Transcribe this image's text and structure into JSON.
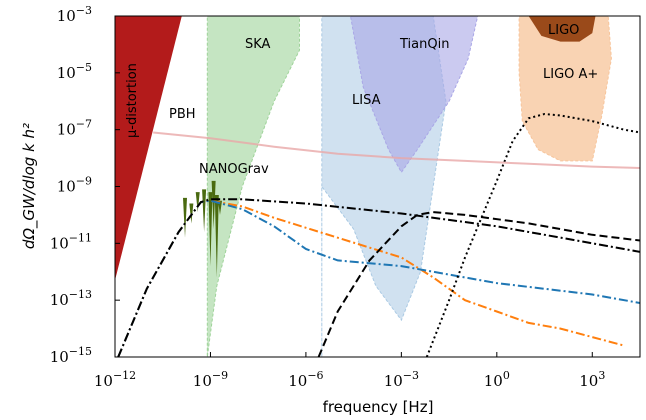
{
  "chart_data": {
    "type": "line",
    "title": "",
    "xlabel": "frequency [Hz]",
    "ylabel": "dΩ_GW/dlog k h²",
    "xscale": "log",
    "yscale": "log",
    "xlim_log10": [
      -12,
      4.5
    ],
    "ylim_log10": [
      -15,
      -3
    ],
    "x_ticks": [
      "10^{-12}",
      "10^{-9}",
      "10^{-6}",
      "10^{-3}",
      "10^{0}",
      "10^{3}"
    ],
    "y_ticks": [
      "10^{-15}",
      "10^{-13}",
      "10^{-11}",
      "10^{-9}",
      "10^{-7}",
      "10^{-5}",
      "10^{-3}"
    ],
    "region_labels": {
      "mu": "μ-distortion",
      "ska": "SKA",
      "tianqin": "TianQin",
      "lisa": "LISA",
      "ligo": "LIGO",
      "ligo_aplus": "LIGO A+",
      "pbh": "PBH",
      "nanograv": "NANOGrav"
    },
    "colors": {
      "mu": "#b31b1b",
      "ska": "#9fd39a",
      "lisa": "#a9c9e3",
      "tianqin": "#a9a6e6",
      "ligo_aplus": "#f7c49a",
      "ligo": "#9a4a1a",
      "nanograv": "#4a6a10",
      "pbh": "#e8a8a8",
      "orange": "#ff7f0e",
      "blue": "#1f77b4",
      "black": "#000000"
    },
    "series": [
      {
        "style": "orange-dashdot",
        "points": [
          [
            -11.9,
            -15
          ],
          [
            -11,
            -12.6
          ],
          [
            -10,
            -10.6
          ],
          [
            -9.3,
            -9.55
          ],
          [
            -9,
            -9.5
          ],
          [
            -8,
            -9.7
          ],
          [
            -7,
            -10.1
          ],
          [
            -5,
            -10.8
          ],
          [
            -3,
            -11.5
          ],
          [
            -2,
            -12.2
          ],
          [
            -1,
            -13
          ],
          [
            0,
            -13.4
          ],
          [
            1,
            -13.8
          ],
          [
            2,
            -14
          ],
          [
            3,
            -14.3
          ],
          [
            4,
            -14.6
          ]
        ]
      },
      {
        "style": "blue-dashdot",
        "points": [
          [
            -11.9,
            -15
          ],
          [
            -11,
            -12.6
          ],
          [
            -10,
            -10.6
          ],
          [
            -9.3,
            -9.55
          ],
          [
            -9,
            -9.5
          ],
          [
            -8,
            -9.8
          ],
          [
            -7,
            -10.4
          ],
          [
            -6,
            -11.2
          ],
          [
            -5,
            -11.6
          ],
          [
            -3,
            -11.8
          ],
          [
            0,
            -12.4
          ],
          [
            3,
            -12.8
          ],
          [
            4.5,
            -13.1
          ]
        ]
      },
      {
        "style": "black-dashdot",
        "points": [
          [
            -11.9,
            -15
          ],
          [
            -11,
            -12.6
          ],
          [
            -10,
            -10.6
          ],
          [
            -9.3,
            -9.55
          ],
          [
            -9,
            -9.45
          ],
          [
            -8,
            -9.45
          ],
          [
            -6,
            -9.6
          ],
          [
            -3,
            -9.95
          ],
          [
            0,
            -10.4
          ],
          [
            3,
            -11
          ],
          [
            4.5,
            -11.3
          ]
        ]
      },
      {
        "style": "black-dashed-1",
        "points": [
          [
            -5.6,
            -15
          ],
          [
            -5,
            -13.4
          ],
          [
            -4,
            -11.6
          ],
          [
            -3,
            -10.4
          ],
          [
            -2.5,
            -10
          ],
          [
            -2,
            -9.9
          ],
          [
            -1,
            -10
          ],
          [
            1,
            -10.3
          ],
          [
            3,
            -10.7
          ],
          [
            4.5,
            -10.9
          ]
        ]
      },
      {
        "style": "black-dotted",
        "points": [
          [
            -2.2,
            -15
          ],
          [
            -1.5,
            -13
          ],
          [
            -1,
            -11.5
          ],
          [
            0,
            -8.8
          ],
          [
            0.5,
            -7.4
          ],
          [
            1,
            -6.6
          ],
          [
            1.5,
            -6.45
          ],
          [
            2,
            -6.5
          ],
          [
            3,
            -6.7
          ],
          [
            4,
            -7
          ],
          [
            4.5,
            -7.1
          ]
        ]
      },
      {
        "style": "pbh-line",
        "points": [
          [
            -10.8,
            -7.1
          ],
          [
            -9,
            -7.3
          ],
          [
            -7,
            -7.6
          ],
          [
            -5,
            -7.85
          ],
          [
            -3,
            -8
          ],
          [
            -1,
            -8.1
          ],
          [
            1,
            -8.2
          ],
          [
            3,
            -8.3
          ],
          [
            4.5,
            -8.35
          ]
        ]
      }
    ]
  }
}
